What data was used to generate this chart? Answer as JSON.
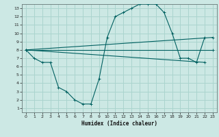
{
  "xlabel": "Humidex (Indice chaleur)",
  "bg_color": "#cce8e4",
  "grid_color": "#aad4ce",
  "line_color": "#006060",
  "xlim": [
    -0.5,
    23.5
  ],
  "ylim": [
    0.5,
    13.5
  ],
  "xticks": [
    0,
    1,
    2,
    3,
    4,
    5,
    6,
    7,
    8,
    9,
    10,
    11,
    12,
    13,
    14,
    15,
    16,
    17,
    18,
    19,
    20,
    21,
    22,
    23
  ],
  "yticks": [
    1,
    2,
    3,
    4,
    5,
    6,
    7,
    8,
    9,
    10,
    11,
    12,
    13
  ],
  "main_curve": {
    "x": [
      0,
      1,
      2,
      3,
      4,
      5,
      6,
      7,
      8,
      9,
      10,
      11,
      12,
      13,
      14,
      15,
      16,
      17,
      18,
      19,
      20,
      21,
      22
    ],
    "y": [
      8,
      7,
      6.5,
      6.5,
      3.5,
      3,
      2,
      1.5,
      1.5,
      4.5,
      9.5,
      12,
      12.5,
      13,
      13.5,
      13.5,
      13.5,
      12.5,
      10,
      7,
      7,
      6.5,
      9.5
    ]
  },
  "trend_lines": [
    {
      "x": [
        0,
        23
      ],
      "y": [
        8,
        9.5
      ]
    },
    {
      "x": [
        0,
        23
      ],
      "y": [
        8,
        8.0
      ]
    },
    {
      "x": [
        0,
        22
      ],
      "y": [
        8,
        6.5
      ]
    }
  ]
}
